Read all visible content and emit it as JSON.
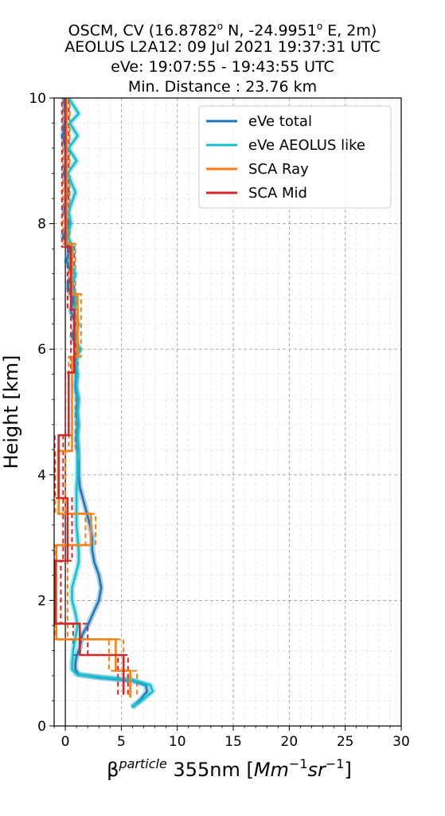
{
  "title_lines": [
    {
      "pre": "OSCM, CV (16.8782",
      "sup1": "o",
      "mid": " N, -24.9951",
      "sup2": "o",
      "post": " E, 2m)"
    },
    {
      "pre": "AEOLUS L2A12: 09 Jul 2021 19:37:31 UTC",
      "sup1": "",
      "mid": "",
      "sup2": "",
      "post": ""
    },
    {
      "pre": "eVe: 19:07:55 - 19:43:55 UTC",
      "sup1": "",
      "mid": "",
      "sup2": "",
      "post": ""
    },
    {
      "pre": "Min. Distance : 23.76 km",
      "sup1": "",
      "mid": "",
      "sup2": "",
      "post": ""
    }
  ],
  "chart_data": {
    "type": "line",
    "orientation": "vertical-profile",
    "xlabel": {
      "base": "β",
      "sup": "particle",
      "mid": " 355nm [",
      "m1": "Mm",
      "s1": "−1",
      "m2": "sr",
      "s2": "−1",
      "end": "]"
    },
    "ylabel": "Height [km]",
    "xlim": [
      -1,
      30
    ],
    "ylim": [
      0,
      10
    ],
    "xticks": [
      0,
      5,
      10,
      15,
      20,
      25,
      30
    ],
    "yticks": [
      0,
      2,
      4,
      6,
      8,
      10
    ],
    "grid": true,
    "legend_position": "top-right",
    "colors": {
      "eve_total": "#1f77b4",
      "eve_aeolus": "#17becf",
      "sca_ray": "#ff7f0e",
      "sca_mid": "#d62728"
    },
    "series": [
      {
        "name": "eVe total",
        "color": "#1f77b4",
        "style": "solid",
        "points": [
          [
            6.0,
            0.3
          ],
          [
            6.6,
            0.4
          ],
          [
            7.3,
            0.55
          ],
          [
            7.2,
            0.65
          ],
          [
            6.0,
            0.72
          ],
          [
            3.0,
            0.77
          ],
          [
            1.2,
            0.82
          ],
          [
            0.9,
            0.9
          ],
          [
            0.9,
            1.0
          ],
          [
            1.0,
            1.1
          ],
          [
            1.3,
            1.25
          ],
          [
            1.5,
            1.45
          ],
          [
            2.0,
            1.6
          ],
          [
            2.5,
            1.8
          ],
          [
            3.0,
            2.0
          ],
          [
            3.2,
            2.2
          ],
          [
            3.0,
            2.4
          ],
          [
            2.6,
            2.6
          ],
          [
            2.4,
            2.8
          ],
          [
            2.4,
            3.0
          ],
          [
            2.2,
            3.2
          ],
          [
            1.9,
            3.4
          ],
          [
            1.6,
            3.6
          ],
          [
            1.3,
            3.8
          ],
          [
            1.2,
            4.0
          ],
          [
            1.2,
            4.2
          ],
          [
            1.1,
            4.4
          ],
          [
            1.0,
            4.6
          ],
          [
            1.1,
            4.8
          ],
          [
            1.0,
            5.0
          ],
          [
            1.1,
            5.2
          ],
          [
            0.9,
            5.4
          ],
          [
            1.0,
            5.6
          ],
          [
            0.8,
            5.8
          ],
          [
            1.1,
            6.0
          ],
          [
            0.6,
            6.2
          ],
          [
            0.9,
            6.4
          ],
          [
            0.5,
            6.6
          ],
          [
            0.7,
            6.8
          ],
          [
            0.2,
            7.0
          ],
          [
            0.6,
            7.2
          ],
          [
            0.1,
            7.4
          ],
          [
            0.4,
            7.6
          ],
          [
            -0.2,
            7.8
          ],
          [
            0.3,
            8.0
          ],
          [
            -0.1,
            8.2
          ],
          [
            0.2,
            8.5
          ],
          [
            -0.1,
            8.8
          ],
          [
            0.1,
            9.1
          ],
          [
            -0.2,
            9.4
          ],
          [
            0.0,
            9.7
          ],
          [
            -0.1,
            10.0
          ]
        ]
      },
      {
        "name": "eVe AEOLUS like",
        "color": "#17becf",
        "style": "solid",
        "points": [
          [
            5.9,
            0.3
          ],
          [
            6.8,
            0.4
          ],
          [
            7.8,
            0.55
          ],
          [
            7.6,
            0.65
          ],
          [
            6.0,
            0.73
          ],
          [
            3.0,
            0.78
          ],
          [
            1.0,
            0.82
          ],
          [
            0.6,
            0.9
          ],
          [
            0.6,
            1.0
          ],
          [
            0.7,
            1.2
          ],
          [
            0.9,
            1.4
          ],
          [
            1.1,
            1.6
          ],
          [
            0.9,
            1.8
          ],
          [
            0.6,
            2.0
          ],
          [
            0.6,
            2.2
          ],
          [
            0.9,
            2.4
          ],
          [
            1.2,
            2.6
          ],
          [
            1.2,
            2.8
          ],
          [
            1.1,
            3.0
          ],
          [
            1.0,
            3.2
          ],
          [
            1.0,
            3.4
          ],
          [
            1.0,
            3.6
          ],
          [
            1.0,
            3.8
          ],
          [
            1.1,
            4.0
          ],
          [
            1.1,
            4.2
          ],
          [
            1.2,
            4.4
          ],
          [
            1.1,
            4.6
          ],
          [
            1.2,
            4.8
          ],
          [
            1.1,
            5.0
          ],
          [
            1.2,
            5.2
          ],
          [
            1.0,
            5.4
          ],
          [
            1.1,
            5.6
          ],
          [
            1.0,
            5.8
          ],
          [
            1.3,
            6.0
          ],
          [
            0.9,
            6.2
          ],
          [
            1.2,
            6.4
          ],
          [
            0.8,
            6.6
          ],
          [
            1.0,
            6.8
          ],
          [
            0.6,
            7.0
          ],
          [
            0.9,
            7.2
          ],
          [
            0.4,
            7.4
          ],
          [
            0.7,
            7.6
          ],
          [
            0.2,
            7.8
          ],
          [
            0.5,
            8.0
          ],
          [
            0.3,
            8.2
          ],
          [
            0.9,
            8.5
          ],
          [
            0.2,
            8.8
          ],
          [
            1.0,
            9.0
          ],
          [
            0.3,
            9.2
          ],
          [
            1.1,
            9.4
          ],
          [
            0.4,
            9.6
          ],
          [
            1.2,
            9.75
          ],
          [
            0.3,
            10.0
          ]
        ]
      },
      {
        "name": "SCA Ray",
        "color": "#ff7f0e",
        "style": "solid",
        "points": [
          [
            5.8,
            0.45
          ],
          [
            5.8,
            0.88
          ],
          [
            4.5,
            0.88
          ],
          [
            4.5,
            1.38
          ],
          [
            -0.8,
            1.38
          ],
          [
            -0.8,
            2.88
          ],
          [
            2.3,
            2.88
          ],
          [
            2.3,
            3.38
          ],
          [
            -0.6,
            3.38
          ],
          [
            -0.6,
            4.38
          ],
          [
            0.6,
            4.38
          ],
          [
            0.6,
            5.88
          ],
          [
            1.1,
            5.88
          ],
          [
            1.1,
            6.88
          ],
          [
            0.6,
            6.88
          ],
          [
            0.6,
            7.68
          ],
          [
            0.1,
            7.68
          ],
          [
            0.1,
            10.0
          ]
        ]
      },
      {
        "name": "SCA Mid",
        "color": "#d62728",
        "style": "solid",
        "points": [
          [
            5.2,
            0.5
          ],
          [
            5.2,
            1.13
          ],
          [
            1.3,
            1.13
          ],
          [
            1.3,
            1.63
          ],
          [
            -0.9,
            1.63
          ],
          [
            -0.9,
            2.63
          ],
          [
            0.2,
            2.63
          ],
          [
            0.2,
            3.63
          ],
          [
            -0.6,
            3.63
          ],
          [
            -0.6,
            4.63
          ],
          [
            0.3,
            4.63
          ],
          [
            0.3,
            5.63
          ],
          [
            0.8,
            5.63
          ],
          [
            0.8,
            6.63
          ],
          [
            0.5,
            6.63
          ],
          [
            0.5,
            7.63
          ],
          [
            0.0,
            7.63
          ],
          [
            0.0,
            10.0
          ]
        ]
      }
    ],
    "error_lines": [
      {
        "color": "#ff7f0e",
        "points": [
          [
            6.4,
            0.5
          ],
          [
            6.4,
            0.88
          ],
          [
            5.2,
            0.88
          ],
          [
            5.2,
            1.38
          ],
          [
            0.2,
            1.38
          ],
          [
            0.2,
            2.88
          ],
          [
            2.7,
            2.88
          ],
          [
            2.7,
            3.38
          ],
          [
            0.0,
            3.38
          ],
          [
            0.0,
            4.38
          ],
          [
            0.9,
            4.38
          ],
          [
            0.9,
            5.88
          ],
          [
            1.4,
            5.88
          ],
          [
            1.4,
            6.88
          ],
          [
            0.9,
            6.88
          ],
          [
            0.9,
            7.68
          ],
          [
            0.4,
            7.68
          ],
          [
            0.4,
            10.0
          ]
        ]
      },
      {
        "color": "#ff7f0e",
        "points": [
          [
            5.2,
            0.5
          ],
          [
            5.2,
            0.88
          ],
          [
            3.9,
            0.88
          ],
          [
            3.9,
            1.38
          ],
          [
            -0.9,
            1.38
          ],
          [
            -0.9,
            2.88
          ],
          [
            1.8,
            2.88
          ],
          [
            1.8,
            3.38
          ],
          [
            -0.9,
            3.38
          ],
          [
            -0.9,
            4.38
          ],
          [
            0.3,
            4.38
          ],
          [
            0.3,
            5.88
          ],
          [
            0.8,
            5.88
          ],
          [
            0.8,
            6.88
          ],
          [
            0.3,
            6.88
          ],
          [
            0.3,
            7.68
          ],
          [
            -0.2,
            7.68
          ],
          [
            -0.2,
            10.0
          ]
        ]
      },
      {
        "color": "#d62728",
        "points": [
          [
            5.6,
            0.5
          ],
          [
            5.6,
            1.13
          ],
          [
            2.0,
            1.13
          ],
          [
            2.0,
            1.63
          ],
          [
            -0.4,
            1.63
          ],
          [
            -0.4,
            2.63
          ],
          [
            0.6,
            2.63
          ],
          [
            0.6,
            3.63
          ],
          [
            -0.2,
            3.63
          ],
          [
            -0.2,
            4.63
          ],
          [
            0.6,
            4.63
          ],
          [
            0.6,
            5.63
          ],
          [
            1.1,
            5.63
          ],
          [
            1.1,
            6.63
          ],
          [
            0.8,
            6.63
          ],
          [
            0.8,
            7.63
          ],
          [
            0.3,
            7.63
          ],
          [
            0.3,
            10.0
          ]
        ]
      },
      {
        "color": "#d62728",
        "points": [
          [
            4.7,
            0.5
          ],
          [
            4.7,
            1.13
          ],
          [
            0.7,
            1.13
          ],
          [
            0.7,
            1.63
          ],
          [
            -0.95,
            1.63
          ],
          [
            -0.95,
            2.63
          ],
          [
            -0.2,
            2.63
          ],
          [
            -0.2,
            3.63
          ],
          [
            -0.95,
            3.63
          ],
          [
            -0.95,
            4.63
          ],
          [
            0.0,
            4.63
          ],
          [
            0.0,
            5.63
          ],
          [
            0.5,
            5.63
          ],
          [
            0.5,
            6.63
          ],
          [
            0.2,
            6.63
          ],
          [
            0.2,
            7.63
          ],
          [
            -0.3,
            7.63
          ],
          [
            -0.3,
            10.0
          ]
        ]
      }
    ]
  }
}
